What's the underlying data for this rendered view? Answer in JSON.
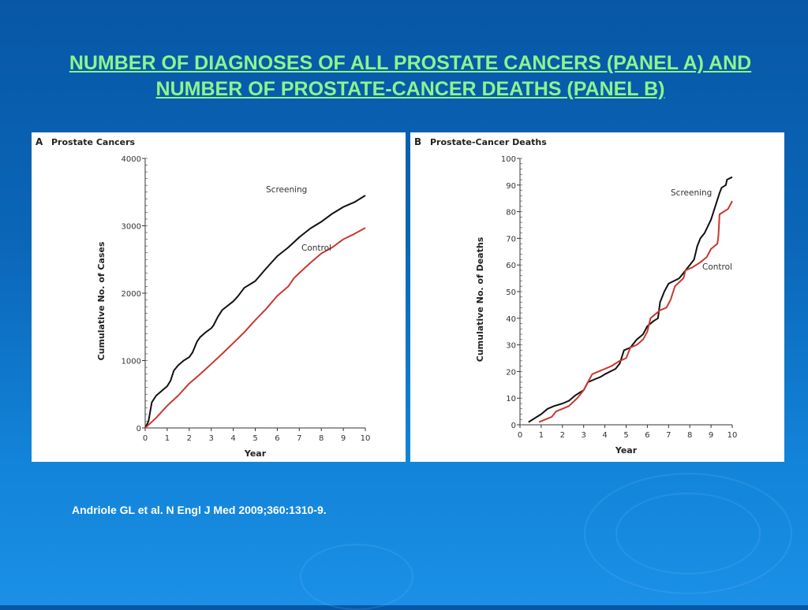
{
  "slide": {
    "title_line1": "NUMBER OF DIAGNOSES OF ALL PROSTATE CANCERS (PANEL A) AND",
    "title_line2": "NUMBER OF PROSTATE-CANCER DEATHS (PANEL B)",
    "citation": "Andriole GL et al. N Engl J Med 2009;360:1310-9.",
    "title_color": "#8cf58c"
  },
  "chart_data": [
    {
      "type": "line",
      "panel": "A",
      "title": "Prostate Cancers",
      "xlabel": "Year",
      "ylabel": "Cumulative No. of Cases",
      "xlim": [
        0,
        10
      ],
      "ylim": [
        0,
        4000
      ],
      "xticks": [
        "0",
        "1",
        "2",
        "3",
        "4",
        "5",
        "6",
        "7",
        "8",
        "9",
        "10"
      ],
      "yticks": [
        "0",
        "1000",
        "2000",
        "3000",
        "4000"
      ],
      "series": [
        {
          "name": "Screening",
          "color": "#111111",
          "x": [
            0,
            0.15,
            0.3,
            0.5,
            0.75,
            1,
            1.15,
            1.3,
            1.5,
            1.75,
            2,
            2.15,
            2.35,
            2.5,
            2.75,
            3,
            3.1,
            3.3,
            3.5,
            4,
            4.2,
            4.5,
            5,
            5.5,
            6,
            6.5,
            7,
            7.5,
            8,
            8.5,
            9,
            9.5,
            10
          ],
          "y": [
            0,
            100,
            380,
            480,
            550,
            620,
            700,
            850,
            930,
            1000,
            1050,
            1120,
            1280,
            1350,
            1420,
            1480,
            1520,
            1650,
            1750,
            1880,
            1950,
            2080,
            2180,
            2370,
            2550,
            2680,
            2830,
            2960,
            3060,
            3180,
            3280,
            3350,
            3450
          ]
        },
        {
          "name": "Control",
          "color": "#c8392e",
          "x": [
            0,
            0.5,
            1,
            1.5,
            2,
            2.5,
            3,
            3.5,
            4,
            4.5,
            5,
            5.5,
            6,
            6.5,
            6.75,
            7,
            7.5,
            8,
            8.5,
            9,
            9.5,
            10
          ],
          "y": [
            0,
            150,
            330,
            480,
            660,
            800,
            950,
            1100,
            1260,
            1420,
            1600,
            1770,
            1960,
            2100,
            2220,
            2300,
            2450,
            2590,
            2680,
            2800,
            2880,
            2970
          ]
        }
      ]
    },
    {
      "type": "line",
      "panel": "B",
      "title": "Prostate-Cancer Deaths",
      "xlabel": "Year",
      "ylabel": "Cumulative No. of Deaths",
      "xlim": [
        0,
        10
      ],
      "ylim": [
        0,
        100
      ],
      "xticks": [
        "0",
        "1",
        "2",
        "3",
        "4",
        "5",
        "6",
        "7",
        "8",
        "9",
        "10"
      ],
      "yticks": [
        "0",
        "10",
        "20",
        "30",
        "40",
        "50",
        "60",
        "70",
        "80",
        "90",
        "100"
      ],
      "series": [
        {
          "name": "Screening",
          "color": "#111111",
          "x": [
            0.4,
            0.8,
            1,
            1.3,
            1.6,
            2,
            2.3,
            2.6,
            2.8,
            3,
            3.2,
            3.5,
            3.8,
            4,
            4.5,
            4.7,
            4.9,
            5.2,
            5.5,
            5.8,
            6,
            6.3,
            6.5,
            6.6,
            6.8,
            7,
            7.5,
            7.9,
            8,
            8.2,
            8.35,
            8.5,
            8.7,
            9,
            9.2,
            9.4,
            9.5,
            9.7,
            9.75,
            10
          ],
          "y": [
            1,
            3,
            4,
            6,
            7,
            8,
            9,
            11,
            12,
            13,
            16,
            17,
            18,
            19,
            21,
            23,
            28,
            29,
            32,
            34,
            37,
            39,
            40,
            46,
            50,
            53,
            55,
            59,
            60,
            62,
            67,
            70,
            72,
            77,
            82,
            87,
            89,
            90,
            92,
            93
          ]
        },
        {
          "name": "Control",
          "color": "#c8392e",
          "x": [
            0.9,
            1.2,
            1.5,
            1.7,
            2,
            2.3,
            2.7,
            3,
            3.2,
            3.4,
            4,
            4.3,
            4.7,
            5,
            5.2,
            5.5,
            5.8,
            6,
            6.15,
            6.6,
            6.9,
            7.1,
            7.3,
            7.7,
            7.8,
            8.1,
            8.5,
            8.8,
            9,
            9.3,
            9.35,
            9.4,
            9.6,
            9.8,
            10
          ],
          "y": [
            1,
            2,
            3,
            5,
            6,
            7,
            10,
            13,
            16,
            19,
            21,
            22,
            24,
            25,
            29,
            30,
            32,
            35,
            40,
            43,
            44,
            47,
            52,
            55,
            58,
            59,
            61,
            63,
            66,
            68,
            71,
            79,
            80,
            81,
            84
          ]
        }
      ]
    }
  ]
}
